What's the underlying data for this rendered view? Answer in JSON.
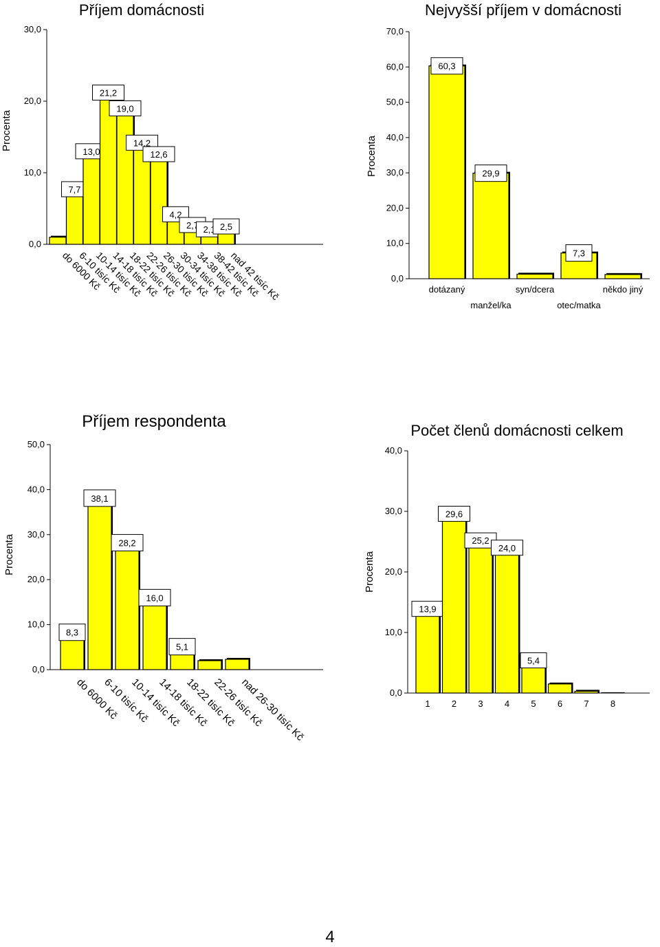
{
  "charts": [
    {
      "type": "bar",
      "title": "Příjem domácnosti",
      "ylabel": "Procenta",
      "yticks": [
        "0,0",
        "10,0",
        "20,0",
        "30,0"
      ],
      "ylim": [
        0,
        30
      ],
      "categories": [
        "do 6000 Kč",
        "6-10 tisíc Kč",
        "10-14 tisíc Kč",
        "14-18 tisíc Kč",
        "18-22 tisíc Kč",
        "22-26 tisíc Kč",
        "26-30 tisíc Kč",
        "30-34 tisíc Kč",
        "34-38 tisíc Kč",
        "38-42 tisíc Kč",
        "nad 42 tisíc Kč"
      ],
      "values": [
        1.0,
        7.7,
        13.0,
        21.2,
        19.0,
        14.2,
        12.6,
        4.2,
        2.7,
        2.1,
        2.5
      ],
      "labels": [
        "",
        "7,7",
        "13,0",
        "21,2",
        "19,0",
        "14,2",
        "12,6",
        "4,2",
        "2,7",
        "2,1",
        "2,5"
      ],
      "bar_color": "#ffff00",
      "rotated_categories": true
    },
    {
      "type": "bar",
      "title": "Nejvyšší příjem v domácnosti",
      "ylabel": "Procenta",
      "yticks": [
        "0,0",
        "10,0",
        "20,0",
        "30,0",
        "40,0",
        "50,0",
        "60,0",
        "70,0"
      ],
      "ylim": [
        0,
        70
      ],
      "categories": [
        "dotázaný",
        "manžel/ka",
        "syn/dcera",
        "otec/matka",
        "někdo jiný"
      ],
      "values": [
        60.3,
        29.9,
        1.3,
        7.3,
        1.2
      ],
      "labels": [
        "60,3",
        "29,9",
        "",
        "7,3",
        ""
      ],
      "bar_color": "#ffff00",
      "rotated_categories": false
    },
    {
      "type": "bar",
      "title": "Příjem respondenta",
      "ylabel": "Procenta",
      "yticks": [
        "0,0",
        "10,0",
        "20,0",
        "30,0",
        "40,0",
        "50,0"
      ],
      "ylim": [
        0,
        50
      ],
      "categories": [
        "do 6000 Kč",
        "6-10 tisíc Kč",
        "10-14 tisíc Kč",
        "14-18 tisíc Kč",
        "18-22 tisíc Kč",
        "22-26 tisíc Kč",
        "nad 26-30 tisíc Kč"
      ],
      "values": [
        8.3,
        38.1,
        28.2,
        16.0,
        5.1,
        2.0,
        2.3
      ],
      "labels": [
        "8,3",
        "38,1",
        "28,2",
        "16,0",
        "5,1",
        "",
        ""
      ],
      "bar_color": "#ffff00",
      "rotated_categories": true
    },
    {
      "type": "bar",
      "title": "Počet členů domácnosti celkem",
      "ylabel": "Procenta",
      "yticks": [
        "0,0",
        "10,0",
        "20,0",
        "30,0",
        "40,0"
      ],
      "ylim": [
        0,
        40
      ],
      "categories": [
        "1",
        "2",
        "3",
        "4",
        "5",
        "6",
        "7",
        "8"
      ],
      "values": [
        13.9,
        29.6,
        25.2,
        24.0,
        5.4,
        1.5,
        0.3,
        0.0
      ],
      "labels": [
        "13,9",
        "29,6",
        "25,2",
        "24,0",
        "5,4",
        "",
        "",
        ""
      ],
      "bar_color": "#ffff00",
      "rotated_categories": false
    }
  ],
  "page_number": "4"
}
